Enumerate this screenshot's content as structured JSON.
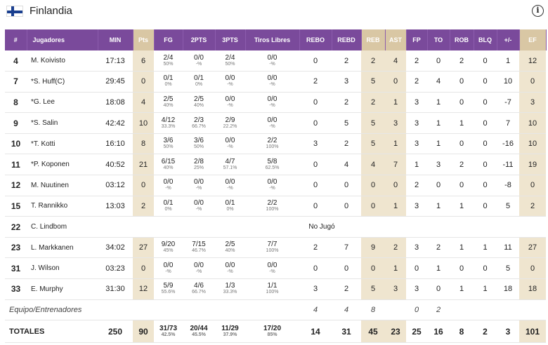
{
  "team": {
    "name": "Finlandia"
  },
  "columns": [
    "#",
    "Jugadores",
    "MIN",
    "Pts",
    "FG",
    "2PTS",
    "3PTS",
    "Tiros Libres",
    "REBO",
    "REBD",
    "REB",
    "AST",
    "FP",
    "TO",
    "ROB",
    "BLQ",
    "+/-",
    "EF"
  ],
  "players": [
    {
      "num": "4",
      "name": "M. Koivisto",
      "min": "17:13",
      "pts": "6",
      "fg": "2/4",
      "fg_pct": "50%",
      "p2": "0/0",
      "p2_pct": "-%",
      "p3": "2/4",
      "p3_pct": "50%",
      "ft": "0/0",
      "ft_pct": "-%",
      "rebo": "0",
      "rebd": "2",
      "reb": "2",
      "ast": "4",
      "fp": "2",
      "to": "0",
      "rob": "2",
      "blq": "0",
      "pm": "1",
      "ef": "12"
    },
    {
      "num": "7",
      "name": "*S. Huff(C)",
      "min": "29:45",
      "pts": "0",
      "fg": "0/1",
      "fg_pct": "0%",
      "p2": "0/1",
      "p2_pct": "0%",
      "p3": "0/0",
      "p3_pct": "-%",
      "ft": "0/0",
      "ft_pct": "-%",
      "rebo": "2",
      "rebd": "3",
      "reb": "5",
      "ast": "0",
      "fp": "2",
      "to": "4",
      "rob": "0",
      "blq": "0",
      "pm": "10",
      "ef": "0"
    },
    {
      "num": "8",
      "name": "*G. Lee",
      "min": "18:08",
      "pts": "4",
      "fg": "2/5",
      "fg_pct": "40%",
      "p2": "2/5",
      "p2_pct": "40%",
      "p3": "0/0",
      "p3_pct": "-%",
      "ft": "0/0",
      "ft_pct": "-%",
      "rebo": "0",
      "rebd": "2",
      "reb": "2",
      "ast": "1",
      "fp": "3",
      "to": "1",
      "rob": "0",
      "blq": "0",
      "pm": "-7",
      "ef": "3"
    },
    {
      "num": "9",
      "name": "*S. Salin",
      "min": "42:42",
      "pts": "10",
      "fg": "4/12",
      "fg_pct": "33.3%",
      "p2": "2/3",
      "p2_pct": "66.7%",
      "p3": "2/9",
      "p3_pct": "22.2%",
      "ft": "0/0",
      "ft_pct": "-%",
      "rebo": "0",
      "rebd": "5",
      "reb": "5",
      "ast": "3",
      "fp": "3",
      "to": "1",
      "rob": "1",
      "blq": "0",
      "pm": "7",
      "ef": "10"
    },
    {
      "num": "10",
      "name": "*T. Kotti",
      "min": "16:10",
      "pts": "8",
      "fg": "3/6",
      "fg_pct": "50%",
      "p2": "3/6",
      "p2_pct": "50%",
      "p3": "0/0",
      "p3_pct": "-%",
      "ft": "2/2",
      "ft_pct": "100%",
      "rebo": "3",
      "rebd": "2",
      "reb": "5",
      "ast": "1",
      "fp": "3",
      "to": "1",
      "rob": "0",
      "blq": "0",
      "pm": "-16",
      "ef": "10"
    },
    {
      "num": "11",
      "name": "*P. Koponen",
      "min": "40:52",
      "pts": "21",
      "fg": "6/15",
      "fg_pct": "40%",
      "p2": "2/8",
      "p2_pct": "25%",
      "p3": "4/7",
      "p3_pct": "57.1%",
      "ft": "5/8",
      "ft_pct": "62.5%",
      "rebo": "0",
      "rebd": "4",
      "reb": "4",
      "ast": "7",
      "fp": "1",
      "to": "3",
      "rob": "2",
      "blq": "0",
      "pm": "-11",
      "ef": "19"
    },
    {
      "num": "12",
      "name": "M. Nuutinen",
      "min": "03:12",
      "pts": "0",
      "fg": "0/0",
      "fg_pct": "-%",
      "p2": "0/0",
      "p2_pct": "-%",
      "p3": "0/0",
      "p3_pct": "-%",
      "ft": "0/0",
      "ft_pct": "-%",
      "rebo": "0",
      "rebd": "0",
      "reb": "0",
      "ast": "0",
      "fp": "2",
      "to": "0",
      "rob": "0",
      "blq": "0",
      "pm": "-8",
      "ef": "0"
    },
    {
      "num": "15",
      "name": "T. Rannikko",
      "min": "13:03",
      "pts": "2",
      "fg": "0/1",
      "fg_pct": "0%",
      "p2": "0/0",
      "p2_pct": "-%",
      "p3": "0/1",
      "p3_pct": "0%",
      "ft": "2/2",
      "ft_pct": "100%",
      "rebo": "0",
      "rebd": "0",
      "reb": "0",
      "ast": "1",
      "fp": "3",
      "to": "1",
      "rob": "1",
      "blq": "0",
      "pm": "5",
      "ef": "2"
    }
  ],
  "dnp_player": {
    "num": "22",
    "name": "C. Lindbom",
    "label": "No Jugó"
  },
  "players2": [
    {
      "num": "23",
      "name": "L. Markkanen",
      "min": "34:02",
      "pts": "27",
      "fg": "9/20",
      "fg_pct": "45%",
      "p2": "7/15",
      "p2_pct": "46.7%",
      "p3": "2/5",
      "p3_pct": "40%",
      "ft": "7/7",
      "ft_pct": "100%",
      "rebo": "2",
      "rebd": "7",
      "reb": "9",
      "ast": "2",
      "fp": "3",
      "to": "2",
      "rob": "1",
      "blq": "1",
      "pm": "11",
      "ef": "27"
    },
    {
      "num": "31",
      "name": "J. Wilson",
      "min": "03:23",
      "pts": "0",
      "fg": "0/0",
      "fg_pct": "-%",
      "p2": "0/0",
      "p2_pct": "-%",
      "p3": "0/0",
      "p3_pct": "-%",
      "ft": "0/0",
      "ft_pct": "-%",
      "rebo": "0",
      "rebd": "0",
      "reb": "0",
      "ast": "1",
      "fp": "0",
      "to": "1",
      "rob": "0",
      "blq": "0",
      "pm": "5",
      "ef": "0"
    },
    {
      "num": "33",
      "name": "E. Murphy",
      "min": "31:30",
      "pts": "12",
      "fg": "5/9",
      "fg_pct": "55.6%",
      "p2": "4/6",
      "p2_pct": "66.7%",
      "p3": "1/3",
      "p3_pct": "33.3%",
      "ft": "1/1",
      "ft_pct": "100%",
      "rebo": "3",
      "rebd": "2",
      "reb": "5",
      "ast": "3",
      "fp": "3",
      "to": "0",
      "rob": "1",
      "blq": "1",
      "pm": "18",
      "ef": "18"
    }
  ],
  "equipo": {
    "label": "Equipo/Entrenadores",
    "rebo": "4",
    "rebd": "4",
    "reb": "8",
    "fp": "0",
    "to": "2"
  },
  "totales": {
    "label": "TOTALES",
    "min": "250",
    "pts": "90",
    "fg": "31/73",
    "fg_pct": "42.5%",
    "p2": "20/44",
    "p2_pct": "45.5%",
    "p3": "11/29",
    "p3_pct": "37.9%",
    "ft": "17/20",
    "ft_pct": "85%",
    "rebo": "14",
    "rebd": "31",
    "reb": "45",
    "ast": "23",
    "fp": "25",
    "to": "16",
    "rob": "8",
    "blq": "2",
    "pm": "3",
    "ef": "101"
  },
  "colors": {
    "header_bg": "#7a4a9b",
    "highlight_header": "#d9c7a4",
    "highlight_cell": "#efe5cf"
  },
  "icons": {
    "flag": "finland-flag-icon",
    "info": "info-icon"
  }
}
